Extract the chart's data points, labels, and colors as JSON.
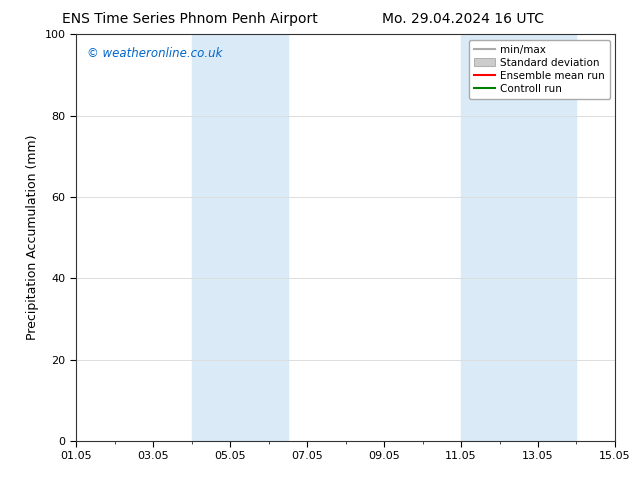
{
  "title_left": "ENS Time Series Phnom Penh Airport",
  "title_right": "Mo. 29.04.2024 16 UTC",
  "ylabel": "Precipitation Accumulation (mm)",
  "ylim": [
    0,
    100
  ],
  "yticks": [
    0,
    20,
    40,
    60,
    80,
    100
  ],
  "xtick_labels": [
    "01.05",
    "03.05",
    "05.05",
    "07.05",
    "09.05",
    "11.05",
    "13.05",
    "15.05"
  ],
  "xtick_positions": [
    0,
    2,
    4,
    6,
    8,
    10,
    12,
    14
  ],
  "xlim_start": 0,
  "xlim_end": 14,
  "watermark": "© weatheronline.co.uk",
  "watermark_color": "#0066cc",
  "background_color": "#ffffff",
  "plot_bg_color": "#ffffff",
  "shaded_regions": [
    {
      "xstart": 3.0,
      "xend": 5.5,
      "color": "#daeaf7"
    },
    {
      "xstart": 10.0,
      "xend": 13.0,
      "color": "#daeaf7"
    }
  ],
  "legend_entries": [
    {
      "label": "min/max",
      "color": "#aaaaaa",
      "linewidth": 1.5,
      "linestyle": "-"
    },
    {
      "label": "Standard deviation",
      "color": "#cccccc",
      "linewidth": 8,
      "linestyle": "-"
    },
    {
      "label": "Ensemble mean run",
      "color": "#ff0000",
      "linewidth": 1.5,
      "linestyle": "-"
    },
    {
      "label": "Controll run",
      "color": "#008000",
      "linewidth": 1.5,
      "linestyle": "-"
    }
  ],
  "grid_color": "#dddddd",
  "tick_label_fontsize": 8,
  "axis_label_fontsize": 9,
  "title_fontsize": 10
}
